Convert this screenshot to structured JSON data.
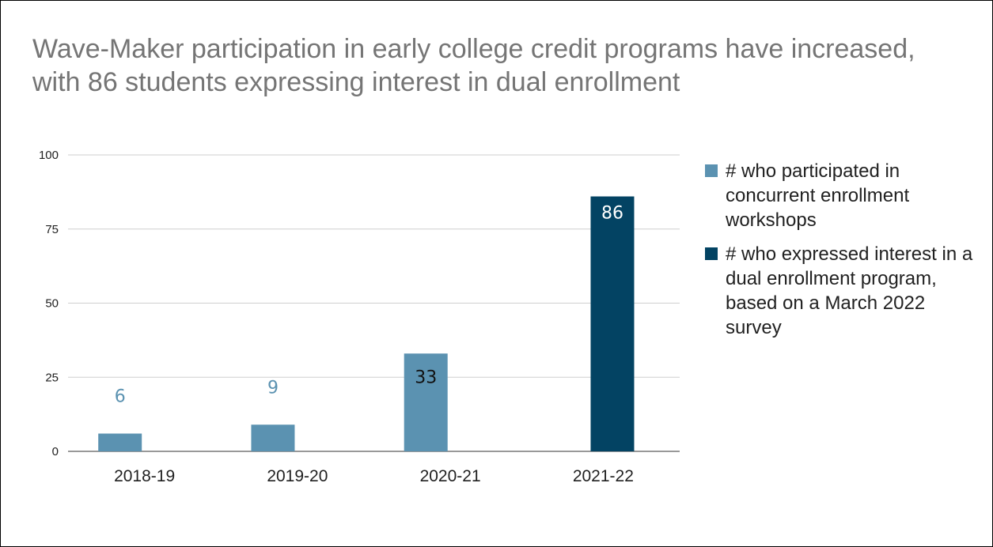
{
  "title": "Wave-Maker participation in early college credit programs have increased, with 86 students expressing interest in dual enrollment",
  "colors": {
    "series_1": "#5b92b1",
    "series_2": "#034363",
    "grid": "#cfcfcf",
    "axis": "#333333",
    "title": "#757575"
  },
  "chart_data": {
    "type": "bar",
    "title": "Wave-Maker participation in early college credit programs have increased, with 86 students expressing interest in dual enrollment",
    "categories": [
      "2018-19",
      "2019-20",
      "2020-21",
      "2021-22"
    ],
    "series": [
      {
        "name": "# who participated in concurrent enrollment workshops",
        "values": [
          6,
          9,
          33,
          null
        ]
      },
      {
        "name": "# who expressed interest in a dual enrollment program, based on a March 2022 survey",
        "values": [
          null,
          null,
          null,
          86
        ]
      }
    ],
    "ylim": [
      0,
      100
    ],
    "yticks": [
      0,
      25,
      50,
      75,
      100
    ],
    "xlabel": "",
    "ylabel": "",
    "grid": true,
    "legend_position": "right"
  }
}
